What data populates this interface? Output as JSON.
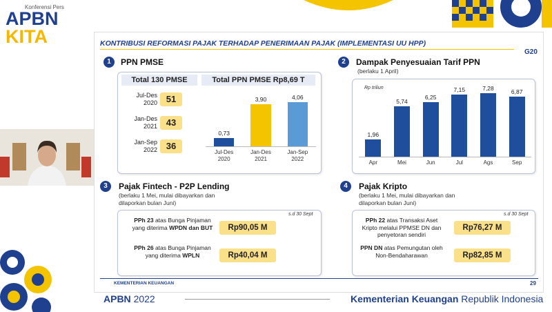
{
  "header": {
    "event": "Konferensi Pers",
    "brand_line1": "APBN",
    "brand_line2": "KITA"
  },
  "slide": {
    "title": "KONTRIBUSI REFORMASI PAJAK TERHADAP PENERIMAAN PAJAK (IMPLEMENTASI UU HPP)",
    "logo": "G20",
    "panel1": {
      "number": "1",
      "title": "PPN PMSE",
      "table": {
        "header": "Total 130 PMSE",
        "rows": [
          {
            "period": "Jul-Des 2020",
            "count": 51
          },
          {
            "period": "Jan-Des 2021",
            "count": 43
          },
          {
            "period": "Jan-Sep 2022",
            "count": 36
          }
        ]
      },
      "chart": {
        "type": "bar",
        "title": "Total PPN PMSE Rp8,69 T",
        "categories": [
          "Jul-Des 2020",
          "Jan-Des 2021",
          "Jan-Sep 2022"
        ],
        "values": [
          0.73,
          3.9,
          4.06
        ],
        "value_labels": [
          "0,73",
          "3,90",
          "4,06"
        ],
        "colors": [
          "#1f4e9c",
          "#f5c400",
          "#5b9bd5"
        ]
      }
    },
    "panel2": {
      "number": "2",
      "title": "Dampak Penyesuaian Tarif PPN",
      "subtitle": "(berlaku 1 April)",
      "chart": {
        "type": "bar",
        "unit": "Rp triliun",
        "categories": [
          "Apr",
          "Mei",
          "Jun",
          "Jul",
          "Ags",
          "Sep"
        ],
        "values": [
          1.96,
          5.74,
          6.25,
          7.15,
          7.28,
          6.87
        ],
        "value_labels": [
          "1,96",
          "5,74",
          "6,25",
          "7,15",
          "7,28",
          "6,87"
        ],
        "color": "#1f4e9c"
      }
    },
    "panel3": {
      "number": "3",
      "title": "Pajak Fintech - P2P Lending",
      "subtitle": "(berlaku 1 Mei, mulai dibayarkan dan dilaporkan bulan Juni)",
      "note": "s.d 30 Sept",
      "items": [
        {
          "tax": "PPh 23",
          "description": "atas Bunga Pinjaman yang diterima",
          "recipient": "WPDN dan BUT",
          "amount": "Rp90,05 M"
        },
        {
          "tax": "PPh 26",
          "description": "atas Bunga Pinjaman yang diterima",
          "recipient": "WPLN",
          "amount": "Rp40,04 M"
        }
      ]
    },
    "panel4": {
      "number": "4",
      "title": "Pajak Kripto",
      "subtitle": "(berlaku 1 Mei, mulai dibayarkan dan dilaporkan bulan Juni)",
      "note": "s.d 30 Sept",
      "items": [
        {
          "tax": "PPh 22",
          "description": "atas Transaksi Aset Kripto melalui PPMSE DN dan penyetoran sendiri",
          "amount": "Rp76,27 M"
        },
        {
          "tax": "PPN DN",
          "description": "atas Pemungutan oleh Non-Bendaharawan",
          "amount": "Rp82,85 M"
        }
      ]
    },
    "footer": {
      "ministry": "KEMENTERIAN KEUANGAN",
      "page": "29"
    }
  },
  "footer": {
    "left_bold": "APBN",
    "left_year": "2022",
    "right_bold": "Kementerian Keuangan",
    "right_text": "Republik Indonesia"
  }
}
